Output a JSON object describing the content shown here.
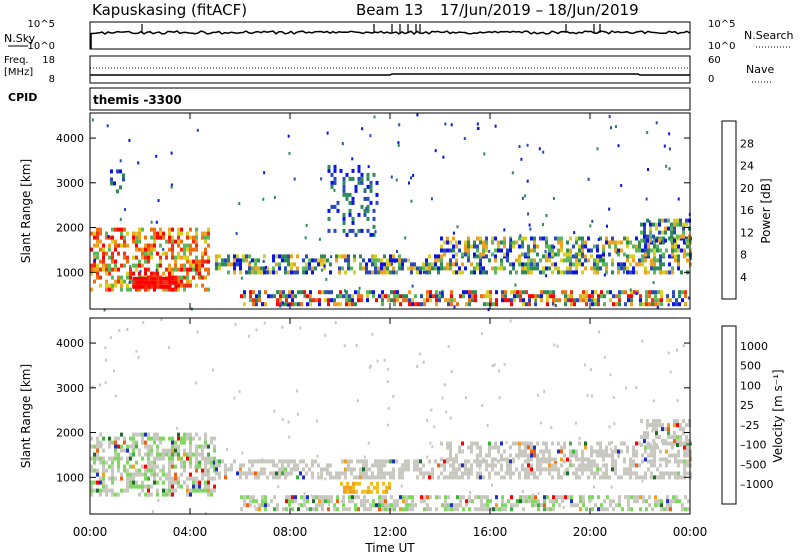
{
  "header": {
    "station": "Kapuskasing (fitACF)",
    "beam": "Beam 13",
    "dates": "17/Jun/2019 – 18/Jun/2019"
  },
  "top_panels": {
    "nsky_label": "N.Sky",
    "nsky_ticks": [
      "10^5",
      "10^0"
    ],
    "nsearch_label": "N.Search",
    "nsearch_ticks": [
      "10^5",
      "10^0"
    ],
    "freq_label_1": "Freq.",
    "freq_label_2": "[MHz]",
    "freq_ticks": [
      "18",
      "8"
    ],
    "nave_label": "Nave",
    "nave_ticks": [
      "60",
      "0"
    ],
    "cpid_label": "CPID",
    "cpid_value": "themis -3300"
  },
  "chart_data": [
    {
      "type": "heatmap",
      "name": "power",
      "ylabel": "Slant Range [km]",
      "ylim": [
        180,
        4560
      ],
      "yticks": [
        "1000",
        "2000",
        "3000",
        "4000"
      ],
      "colorbar_label": "Power [dB]",
      "colorbar_ticks": [
        "28",
        "24",
        "20",
        "16",
        "12",
        "8",
        "4"
      ],
      "colors": [
        "#0a14e6",
        "#2a4ab8",
        "#2e8b57",
        "#5ab85a",
        "#d8d020",
        "#f0a020",
        "#f07010",
        "#f03010",
        "#ff0000"
      ],
      "features": [
        {
          "t": [
            0.0,
            4.8
          ],
          "r": [
            600,
            2000
          ],
          "level": "high"
        },
        {
          "t": [
            1.7,
            3.5
          ],
          "r": [
            650,
            900
          ],
          "level": "max"
        },
        {
          "t": [
            5.0,
            24.0
          ],
          "r": [
            1000,
            1400
          ],
          "level": "medium"
        },
        {
          "t": [
            14.0,
            24.0
          ],
          "r": [
            1400,
            1800
          ],
          "level": "medium"
        },
        {
          "t": [
            6.0,
            24.0
          ],
          "r": [
            250,
            600
          ],
          "level": "mixed"
        },
        {
          "t": [
            9.5,
            11.5
          ],
          "r": [
            1800,
            3400
          ],
          "level": "low"
        },
        {
          "t": [
            22.0,
            24.0
          ],
          "r": [
            1700,
            2200
          ],
          "level": "medium"
        },
        {
          "t": [
            0.8,
            1.4
          ],
          "r": [
            2800,
            3300
          ],
          "level": "low"
        }
      ]
    },
    {
      "type": "heatmap",
      "name": "velocity",
      "ylabel": "Slant Range [km]",
      "ylim": [
        180,
        4560
      ],
      "yticks": [
        "1000",
        "2000",
        "3000",
        "4000"
      ],
      "colorbar_label": "Velocity [m s⁻¹]",
      "colorbar_ticks": [
        "1000",
        "500",
        "100",
        "25",
        "–25",
        "–100",
        "–500",
        "–1000"
      ],
      "colors": [
        "#2030c0",
        "#1e6e2a",
        "#3cb43c",
        "#7fd85f",
        "#c8c8c0",
        "#c8c8c0",
        "#f0a020",
        "#f06010",
        "#ff0000"
      ],
      "features": [
        {
          "t": [
            0.0,
            5.0
          ],
          "r": [
            600,
            2000
          ],
          "level": "mixed"
        },
        {
          "t": [
            5.0,
            24.0
          ],
          "r": [
            1000,
            1400
          ],
          "level": "ground"
        },
        {
          "t": [
            14.0,
            24.0
          ],
          "r": [
            1400,
            1800
          ],
          "level": "ground"
        },
        {
          "t": [
            10.0,
            12.0
          ],
          "r": [
            700,
            900
          ],
          "level": "away"
        },
        {
          "t": [
            6.0,
            24.0
          ],
          "r": [
            250,
            600
          ],
          "level": "mixed"
        },
        {
          "t": [
            22.0,
            24.0
          ],
          "r": [
            1700,
            2300
          ],
          "level": "ground"
        }
      ]
    }
  ],
  "x_axis": {
    "ticks": [
      "00:00",
      "04:00",
      "08:00",
      "12:00",
      "16:00",
      "20:00",
      "00:00"
    ],
    "label": "Time UT"
  }
}
